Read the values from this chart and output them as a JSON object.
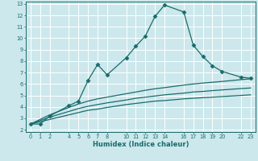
{
  "xlabel": "Humidex (Indice chaleur)",
  "bg_color": "#cce8ec",
  "grid_color": "#ffffff",
  "line_color": "#1a6b6b",
  "xlim": [
    -0.5,
    23.5
  ],
  "ylim": [
    1.8,
    13.2
  ],
  "xticks": [
    0,
    1,
    2,
    4,
    5,
    6,
    7,
    8,
    10,
    11,
    12,
    13,
    14,
    16,
    17,
    18,
    19,
    20,
    22,
    23
  ],
  "yticks": [
    2,
    3,
    4,
    5,
    6,
    7,
    8,
    9,
    10,
    11,
    12,
    13
  ],
  "line1_x": [
    0,
    1,
    2,
    4,
    5,
    6,
    7,
    8,
    10,
    11,
    12,
    13,
    14,
    16,
    17,
    18,
    19,
    20,
    22,
    23
  ],
  "line1_y": [
    2.5,
    2.5,
    3.2,
    4.1,
    4.5,
    6.3,
    7.7,
    6.8,
    8.3,
    9.3,
    10.2,
    11.9,
    12.9,
    12.3,
    9.4,
    8.4,
    7.6,
    7.1,
    6.6,
    6.5
  ],
  "curve2_x": [
    0,
    1,
    2,
    4,
    5,
    6,
    7,
    8,
    10,
    11,
    12,
    13,
    14,
    16,
    17,
    18,
    19,
    20,
    22,
    23
  ],
  "curve2_y": [
    2.5,
    2.7,
    2.9,
    3.3,
    3.5,
    3.7,
    3.8,
    3.95,
    4.2,
    4.3,
    4.4,
    4.5,
    4.55,
    4.7,
    4.75,
    4.8,
    4.85,
    4.9,
    5.0,
    5.05
  ],
  "curve3_x": [
    0,
    1,
    2,
    4,
    5,
    6,
    7,
    8,
    10,
    11,
    12,
    13,
    14,
    16,
    17,
    18,
    19,
    20,
    22,
    23
  ],
  "curve3_y": [
    2.5,
    2.8,
    3.1,
    3.6,
    3.85,
    4.05,
    4.2,
    4.35,
    4.6,
    4.75,
    4.85,
    4.95,
    5.05,
    5.2,
    5.3,
    5.35,
    5.42,
    5.48,
    5.6,
    5.65
  ],
  "curve4_x": [
    0,
    1,
    2,
    4,
    5,
    6,
    7,
    8,
    10,
    11,
    12,
    13,
    14,
    16,
    17,
    18,
    19,
    20,
    22,
    23
  ],
  "curve4_y": [
    2.5,
    2.9,
    3.3,
    3.95,
    4.25,
    4.5,
    4.7,
    4.85,
    5.15,
    5.3,
    5.45,
    5.58,
    5.68,
    5.9,
    6.0,
    6.08,
    6.15,
    6.22,
    6.38,
    6.45
  ]
}
